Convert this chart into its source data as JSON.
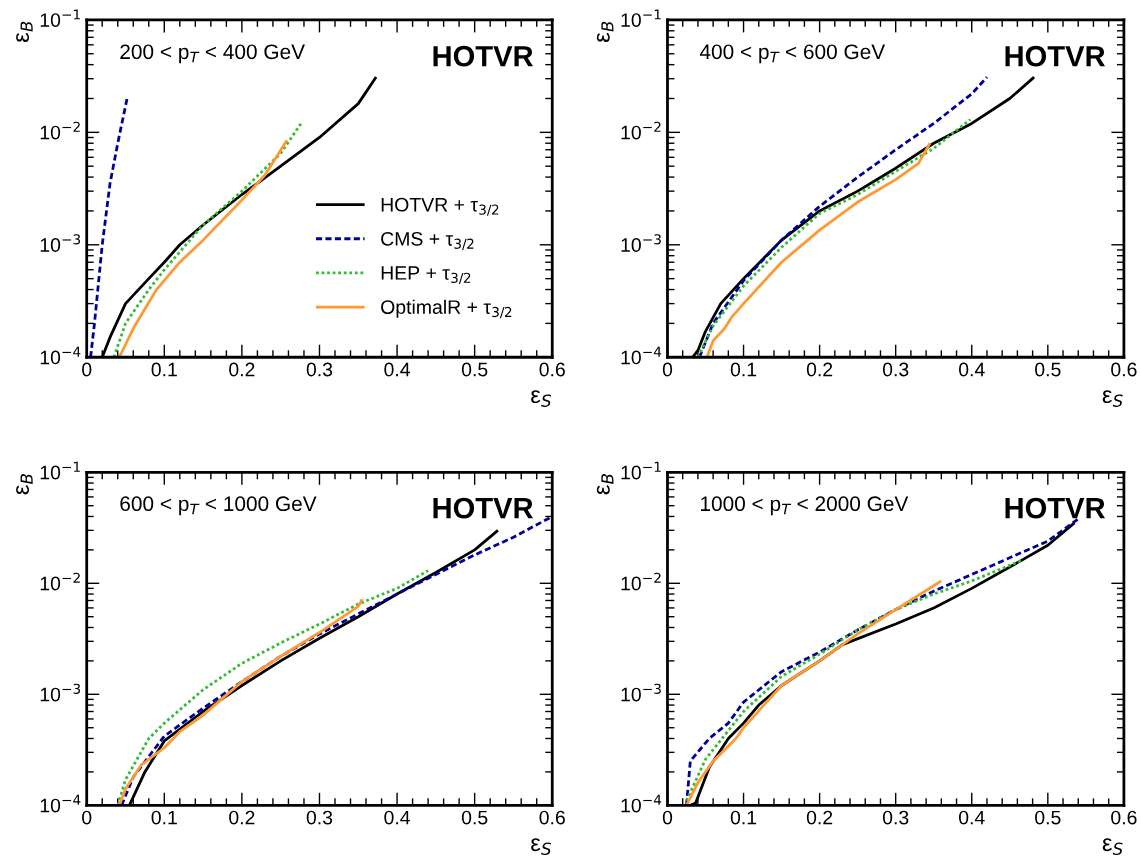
{
  "chart_data": [
    {
      "type": "line",
      "annotations": [
        "200 < p$_{T}$ < 400 GeV",
        "HOTVR"
      ],
      "xlabel": "ε$_{S}$",
      "ylabel": "ε$_{B}$",
      "log": "y",
      "xlim": [
        0,
        0.6
      ],
      "ylim": [
        0.0001,
        0.1
      ],
      "xticks": [
        0,
        0.1,
        0.2,
        0.3,
        0.4,
        0.5,
        0.6
      ],
      "yticks": [
        {
          "value": 0.0001,
          "label": "10$^{−4}$"
        },
        {
          "value": 0.001,
          "label": "10$^{−3}$"
        },
        {
          "value": 0.01,
          "label": "10$^{−2}$"
        },
        {
          "value": 0.1,
          "label": "10$^{−1}$"
        }
      ],
      "grid": false,
      "legend": "bottom right",
      "series": [
        {
          "name": "HOTVR + τ$_{3/2}$",
          "color": "#000000",
          "line_style": "solid",
          "x": [
            0.02,
            0.03,
            0.05,
            0.08,
            0.1,
            0.12,
            0.15,
            0.2,
            0.25,
            0.3,
            0.35,
            0.373
          ],
          "values": [
            0.0001,
            0.00015,
            0.0003,
            0.0005,
            0.0007,
            0.001,
            0.0015,
            0.0028,
            0.005,
            0.009,
            0.018,
            0.031
          ]
        },
        {
          "name": "CMS + τ$_{3/2}$",
          "color": "#000099",
          "line_style": "dashed",
          "x": [
            0.005,
            0.01,
            0.02,
            0.03,
            0.04,
            0.052
          ],
          "values": [
            0.0001,
            0.0002,
            0.001,
            0.0035,
            0.008,
            0.02
          ]
        },
        {
          "name": "HEP + τ$_{3/2}$",
          "color": "#33bb33",
          "line_style": "dotted",
          "x": [
            0.035,
            0.05,
            0.08,
            0.1,
            0.15,
            0.2,
            0.25,
            0.278
          ],
          "values": [
            0.0001,
            0.0002,
            0.0004,
            0.0006,
            0.0015,
            0.003,
            0.0065,
            0.0125
          ]
        },
        {
          "name": "OptimalR + τ$_{3/2}$",
          "color": "#ff9933",
          "line_style": "solid",
          "x": [
            0.042,
            0.06,
            0.09,
            0.12,
            0.15,
            0.2,
            0.23,
            0.258
          ],
          "values": [
            0.0001,
            0.00018,
            0.0004,
            0.0007,
            0.0011,
            0.0025,
            0.0042,
            0.0085
          ]
        }
      ]
    },
    {
      "type": "line",
      "annotations": [
        "400 < p$_{T}$ < 600 GeV",
        "HOTVR"
      ],
      "xlabel": "ε$_{S}$",
      "ylabel": "ε$_{B}$",
      "log": "y",
      "xlim": [
        0,
        0.6
      ],
      "ylim": [
        0.0001,
        0.1
      ],
      "xticks": [
        0,
        0.1,
        0.2,
        0.3,
        0.4,
        0.5,
        0.6
      ],
      "yticks": [
        {
          "value": 0.0001,
          "label": "10$^{−4}$"
        },
        {
          "value": 0.001,
          "label": "10$^{−3}$"
        },
        {
          "value": 0.01,
          "label": "10$^{−2}$"
        },
        {
          "value": 0.1,
          "label": "10$^{−1}$"
        }
      ],
      "grid": false,
      "series": [
        {
          "color": "#000000",
          "line_style": "solid",
          "x": [
            0.033,
            0.04,
            0.05,
            0.07,
            0.1,
            0.15,
            0.2,
            0.25,
            0.3,
            0.35,
            0.4,
            0.45,
            0.482
          ],
          "values": [
            0.0001,
            0.000115,
            0.00017,
            0.0003,
            0.0005,
            0.0011,
            0.002,
            0.003,
            0.0048,
            0.008,
            0.012,
            0.02,
            0.031
          ]
        },
        {
          "color": "#000099",
          "line_style": "dashed",
          "x": [
            0.042,
            0.06,
            0.1,
            0.15,
            0.2,
            0.25,
            0.3,
            0.35,
            0.4,
            0.42
          ],
          "values": [
            0.0001,
            0.0002,
            0.00048,
            0.0011,
            0.0022,
            0.004,
            0.007,
            0.012,
            0.022,
            0.031
          ]
        },
        {
          "color": "#33bb33",
          "line_style": "dotted",
          "x": [
            0.04,
            0.06,
            0.1,
            0.15,
            0.2,
            0.25,
            0.3,
            0.35,
            0.398
          ],
          "values": [
            0.0001,
            0.00019,
            0.00043,
            0.00095,
            0.0019,
            0.0028,
            0.0045,
            0.0072,
            0.013
          ]
        },
        {
          "color": "#ff9933",
          "line_style": "solid",
          "x": [
            0.052,
            0.06,
            0.075,
            0.085,
            0.1,
            0.15,
            0.2,
            0.25,
            0.3,
            0.33,
            0.345
          ],
          "values": [
            0.0001,
            0.00014,
            0.00018,
            0.00023,
            0.0003,
            0.0007,
            0.00135,
            0.0024,
            0.0038,
            0.0053,
            0.008
          ]
        }
      ]
    },
    {
      "type": "line",
      "annotations": [
        "600 < p$_{T}$ < 1000 GeV",
        "HOTVR"
      ],
      "xlabel": "ε$_{S}$",
      "ylabel": "ε$_{B}$",
      "log": "y",
      "xlim": [
        0,
        0.6
      ],
      "ylim": [
        0.0001,
        0.1
      ],
      "xticks": [
        0,
        0.1,
        0.2,
        0.3,
        0.4,
        0.5,
        0.6
      ],
      "yticks": [
        {
          "value": 0.0001,
          "label": "10$^{−4}$"
        },
        {
          "value": 0.001,
          "label": "10$^{−3}$"
        },
        {
          "value": 0.01,
          "label": "10$^{−2}$"
        },
        {
          "value": 0.1,
          "label": "10$^{−1}$"
        }
      ],
      "grid": false,
      "series": [
        {
          "color": "#000000",
          "line_style": "solid",
          "x": [
            0.055,
            0.075,
            0.1,
            0.15,
            0.2,
            0.25,
            0.3,
            0.35,
            0.4,
            0.45,
            0.5,
            0.53
          ],
          "values": [
            0.0001,
            0.0002,
            0.00038,
            0.0007,
            0.0012,
            0.002,
            0.0032,
            0.005,
            0.008,
            0.0125,
            0.02,
            0.03
          ]
        },
        {
          "color": "#000099",
          "line_style": "dashed",
          "x": [
            0.045,
            0.06,
            0.1,
            0.15,
            0.2,
            0.25,
            0.3,
            0.35,
            0.4,
            0.45,
            0.5,
            0.55,
            0.6
          ],
          "values": [
            0.0001,
            0.00018,
            0.00042,
            0.00075,
            0.0013,
            0.0022,
            0.0035,
            0.0053,
            0.008,
            0.012,
            0.018,
            0.026,
            0.04
          ]
        },
        {
          "color": "#33bb33",
          "line_style": "dotted",
          "x": [
            0.04,
            0.05,
            0.08,
            0.1,
            0.15,
            0.2,
            0.25,
            0.3,
            0.35,
            0.4,
            0.44
          ],
          "values": [
            0.0001,
            0.00017,
            0.0004,
            0.00055,
            0.0011,
            0.0019,
            0.0029,
            0.0043,
            0.0065,
            0.009,
            0.013
          ]
        },
        {
          "color": "#ff9933",
          "line_style": "solid",
          "x": [
            0.042,
            0.05,
            0.07,
            0.1,
            0.12,
            0.15,
            0.2,
            0.25,
            0.3,
            0.35,
            0.355
          ],
          "values": [
            0.0001,
            0.00014,
            0.00023,
            0.00033,
            0.00046,
            0.00065,
            0.0013,
            0.0022,
            0.0036,
            0.0062,
            0.0072
          ]
        }
      ]
    },
    {
      "type": "line",
      "annotations": [
        "1000 < p$_{T}$ < 2000 GeV",
        "HOTVR"
      ],
      "xlabel": "ε$_{S}$",
      "ylabel": "ε$_{B}$",
      "log": "y",
      "xlim": [
        0,
        0.6
      ],
      "ylim": [
        0.0001,
        0.1
      ],
      "xticks": [
        0,
        0.1,
        0.2,
        0.3,
        0.4,
        0.5,
        0.6
      ],
      "yticks": [
        {
          "value": 0.0001,
          "label": "10$^{−4}$"
        },
        {
          "value": 0.001,
          "label": "10$^{−3}$"
        },
        {
          "value": 0.01,
          "label": "10$^{−2}$"
        },
        {
          "value": 0.1,
          "label": "10$^{−1}$"
        }
      ],
      "grid": false,
      "series": [
        {
          "color": "#000000",
          "line_style": "solid",
          "x": [
            0.03,
            0.037,
            0.055,
            0.08,
            0.1,
            0.12,
            0.15,
            0.2,
            0.23,
            0.3,
            0.35,
            0.4,
            0.45,
            0.5,
            0.535
          ],
          "values": [
            0.0001,
            0.000105,
            0.00022,
            0.0004,
            0.00055,
            0.0008,
            0.0012,
            0.002,
            0.0028,
            0.0043,
            0.006,
            0.009,
            0.014,
            0.022,
            0.035
          ]
        },
        {
          "color": "#000099",
          "line_style": "dashed",
          "x": [
            0.025,
            0.03,
            0.055,
            0.08,
            0.1,
            0.15,
            0.2,
            0.25,
            0.3,
            0.35,
            0.4,
            0.45,
            0.5,
            0.54
          ],
          "values": [
            0.0001,
            0.00025,
            0.0004,
            0.00055,
            0.00085,
            0.0016,
            0.0024,
            0.0038,
            0.0058,
            0.0085,
            0.012,
            0.017,
            0.024,
            0.038
          ]
        },
        {
          "color": "#33bb33",
          "line_style": "dotted",
          "x": [
            0.025,
            0.05,
            0.1,
            0.15,
            0.2,
            0.25,
            0.3,
            0.35,
            0.4,
            0.465
          ],
          "values": [
            0.00011,
            0.00026,
            0.0007,
            0.00145,
            0.0023,
            0.0038,
            0.0058,
            0.008,
            0.0105,
            0.016
          ]
        },
        {
          "color": "#ff9933",
          "line_style": "solid",
          "x": [
            0.025,
            0.04,
            0.06,
            0.09,
            0.1,
            0.15,
            0.2,
            0.25,
            0.3,
            0.35,
            0.36
          ],
          "values": [
            0.0001,
            0.00016,
            0.00025,
            0.0004,
            0.0005,
            0.0012,
            0.002,
            0.0035,
            0.0058,
            0.0095,
            0.0105
          ]
        }
      ]
    }
  ]
}
